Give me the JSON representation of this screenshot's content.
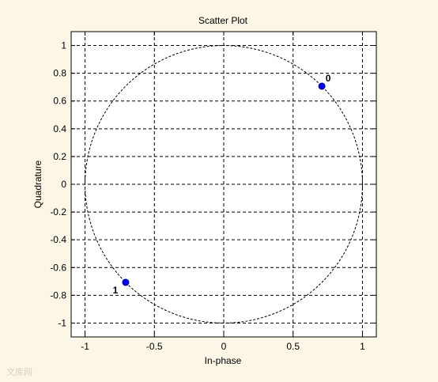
{
  "chart_data": {
    "type": "scatter",
    "title": "Scatter Plot",
    "xlabel": "In-phase",
    "ylabel": "Quadrature",
    "xlim": [
      -1.1,
      1.1
    ],
    "ylim": [
      -1.1,
      1.1
    ],
    "x_ticks": [
      -1,
      -0.5,
      0,
      0.5,
      1
    ],
    "x_tick_labels": [
      "-1",
      "-0.5",
      "0",
      "0.5",
      "1"
    ],
    "y_ticks": [
      1,
      0.8,
      0.6,
      0.4,
      0.2,
      0,
      -0.2,
      -0.4,
      -0.6,
      -0.8,
      -1
    ],
    "y_tick_labels": [
      "1",
      "0.8",
      "0.6",
      "0.4",
      "0.2",
      "0",
      "-0.2",
      "-0.4",
      "-0.6",
      "-0.8",
      "-1"
    ],
    "grid": true,
    "grid_style": "dashed",
    "reference_circle": {
      "center": [
        0,
        0
      ],
      "radius": 1,
      "style": "dashed"
    },
    "points": [
      {
        "x": 0.707,
        "y": 0.707,
        "label": "0"
      },
      {
        "x": -0.707,
        "y": -0.707,
        "label": "1"
      }
    ],
    "point_color": "#0000ff",
    "background_color": "#fbf6e6",
    "axes_background": "#ffffff"
  },
  "watermark": {
    "text": "文库网"
  }
}
